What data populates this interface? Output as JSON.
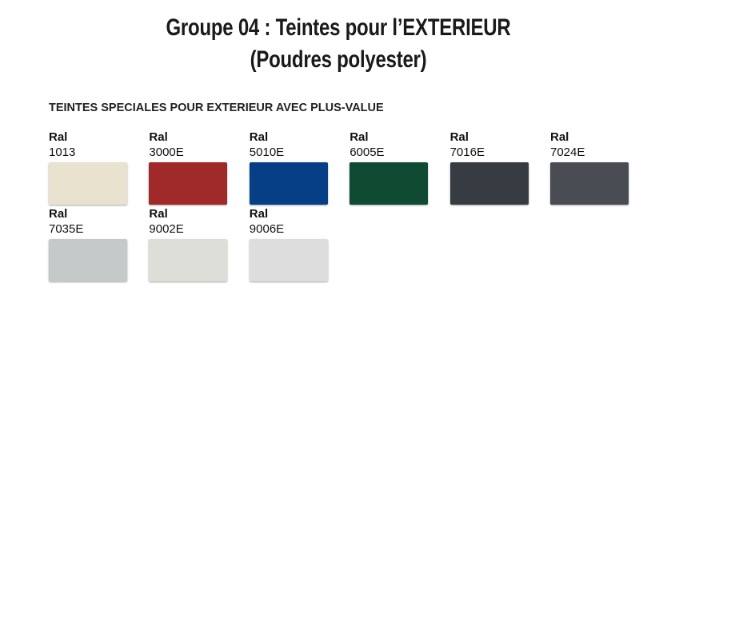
{
  "header": {
    "title": [
      "Groupe 04 : Teintes pour l’EXTERIEUR",
      "(Poudres polyester)"
    ]
  },
  "section": {
    "heading": "TEINTES SPECIALES POUR EXTERIEUR AVEC PLUS-VALUE",
    "swatches": [
      {
        "label": "Ral",
        "code": "1013",
        "color": "#e8e2cf"
      },
      {
        "label": "Ral",
        "code": "3000E",
        "color": "#a0292a"
      },
      {
        "label": "Ral",
        "code": "5010E",
        "color": "#063f86"
      },
      {
        "label": "Ral",
        "code": "6005E",
        "color": "#0f4a33"
      },
      {
        "label": "Ral",
        "code": "7016E",
        "color": "#373b42"
      },
      {
        "label": "Ral",
        "code": "7024E",
        "color": "#494c53"
      },
      {
        "label": "Ral",
        "code": "7035E",
        "color": "#c5c9ca"
      },
      {
        "label": "Ral",
        "code": "9002E",
        "color": "#deded8"
      },
      {
        "label": "Ral",
        "code": "9006E",
        "color": "#dcdddc"
      }
    ]
  }
}
